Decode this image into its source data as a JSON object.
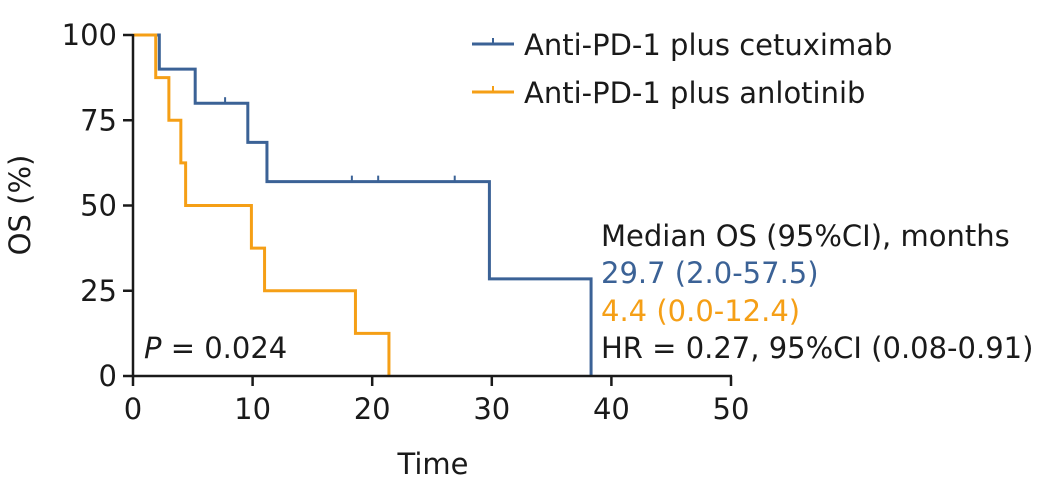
{
  "chart_data": {
    "type": "line",
    "title": "",
    "xlabel": "Time",
    "ylabel": "OS (%)",
    "xlim": [
      0,
      50
    ],
    "ylim": [
      0,
      100
    ],
    "xticks": [
      0,
      10,
      20,
      30,
      40,
      50
    ],
    "yticks": [
      0,
      25,
      50,
      75,
      100
    ],
    "grid": false,
    "legend_position": "top-right",
    "series": [
      {
        "name": "Anti-PD-1 plus cetuximab",
        "color": "#3B6296",
        "steps": [
          [
            0,
            100
          ],
          [
            2.2,
            90
          ],
          [
            5.2,
            80
          ],
          [
            9.6,
            68.5
          ],
          [
            11.2,
            57
          ],
          [
            29.8,
            28.5
          ],
          [
            38.3,
            0
          ]
        ],
        "end": 38.3,
        "censors": [
          [
            7.7,
            80
          ],
          [
            18.3,
            57
          ],
          [
            20.5,
            57
          ],
          [
            26.9,
            57
          ]
        ]
      },
      {
        "name": "Anti-PD-1 plus anlotinib",
        "color": "#F59F16",
        "steps": [
          [
            0,
            100
          ],
          [
            1.9,
            87.5
          ],
          [
            3.0,
            75
          ],
          [
            4.0,
            62.5
          ],
          [
            4.4,
            50
          ],
          [
            9.9,
            37.5
          ],
          [
            11.0,
            25
          ],
          [
            18.6,
            12.5
          ],
          [
            21.4,
            0
          ]
        ],
        "end": 21.4,
        "censors": []
      }
    ],
    "annotations": {
      "median_header": "Median OS (95%CI), months",
      "median_cetuximab": "29.7 (2.0-57.5)",
      "median_anlotinib": "4.4 (0.0-12.4)",
      "hr": "HR = 0.27, 95%CI (0.08-0.91)",
      "p_symbol": "P",
      "p_value": " = 0.024"
    }
  }
}
